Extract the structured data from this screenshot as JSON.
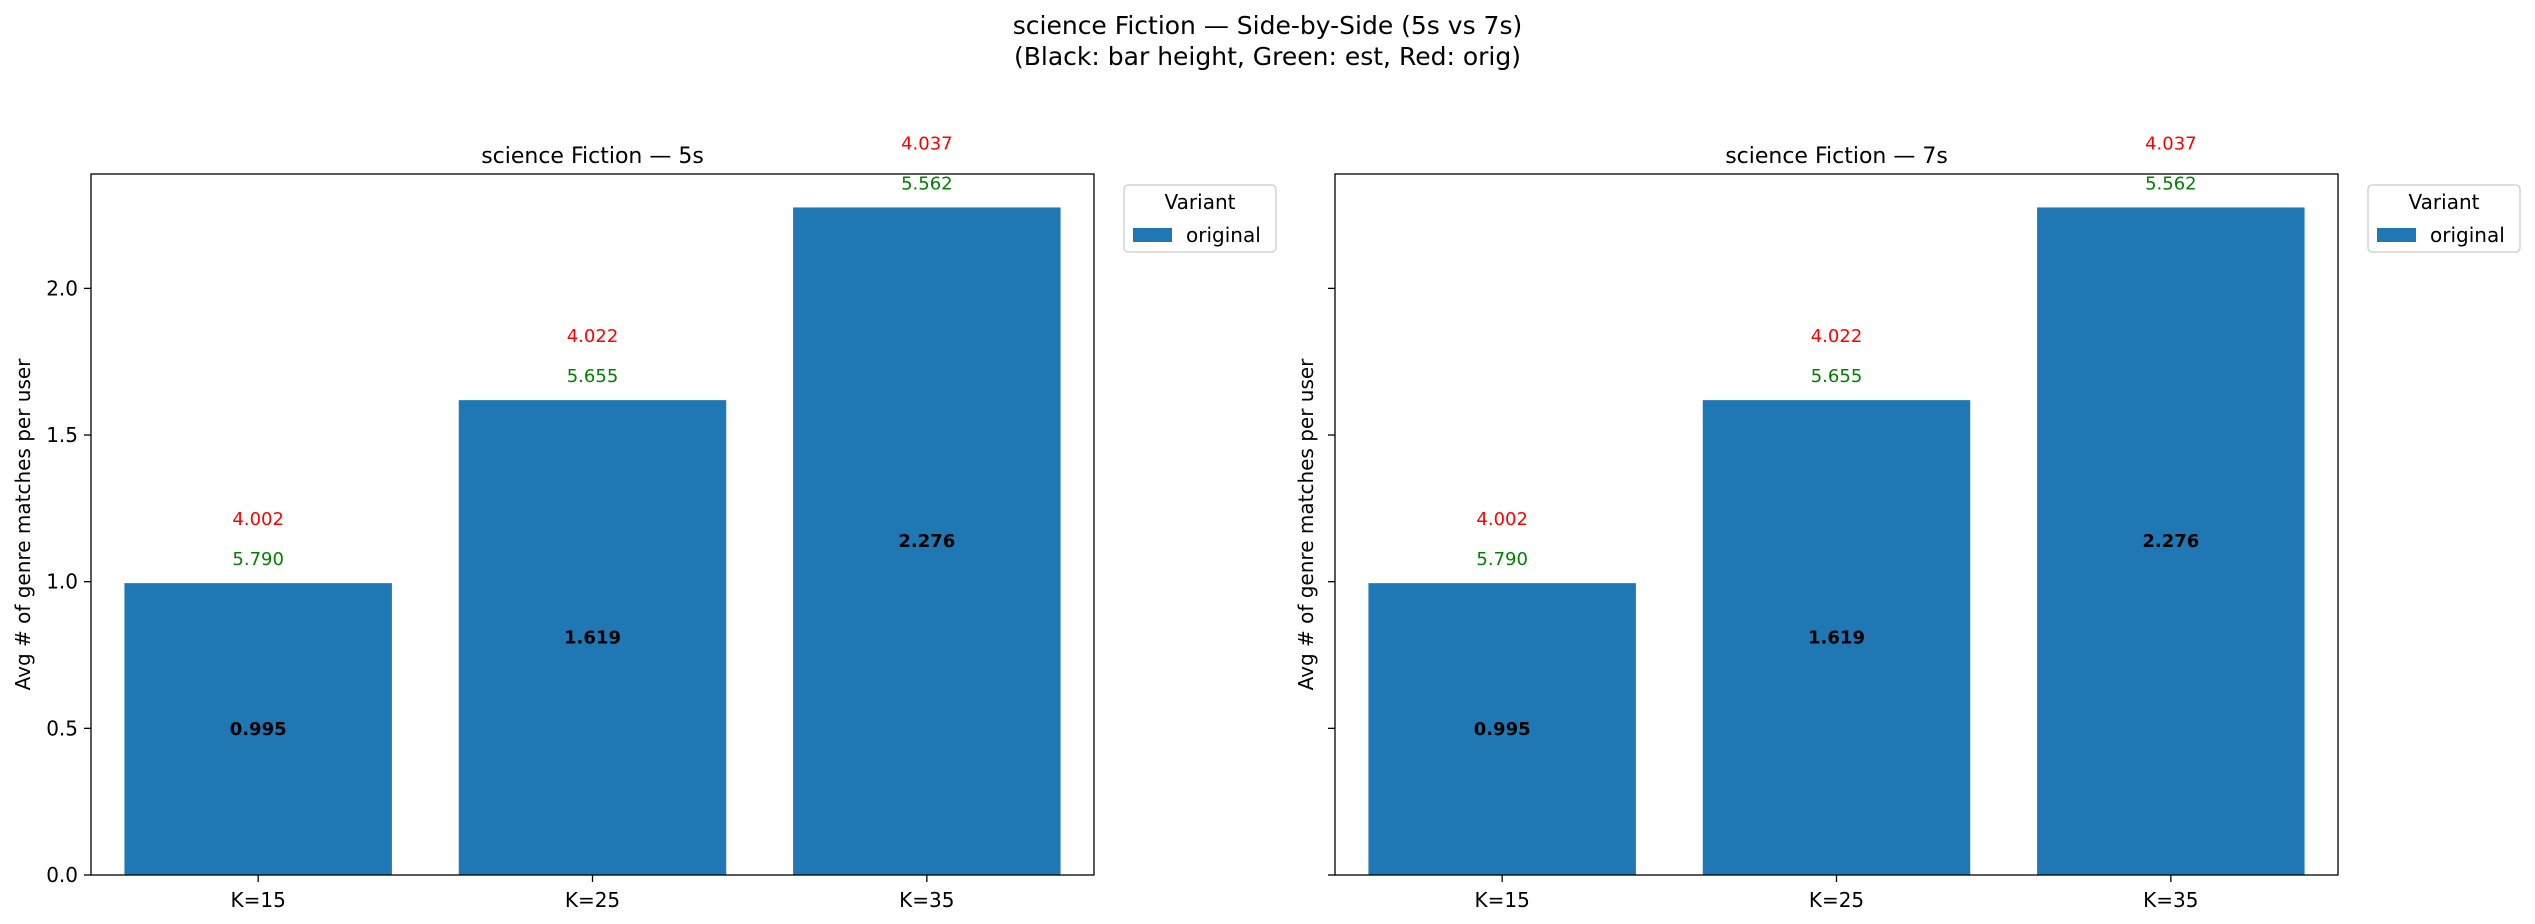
{
  "suptitle": {
    "line1": "science Fiction — Side-by-Side (5s vs 7s)",
    "line2": "(Black: bar height, Green: est, Red: orig)"
  },
  "colors": {
    "bar": "#1f77b4",
    "label_black": "#000000",
    "label_green": "#008000",
    "label_red": "#ff0000"
  },
  "chart_data": [
    {
      "type": "bar",
      "title": "science Fiction — 5s",
      "ylabel": "Avg # of genre matches per user",
      "xlabel": "",
      "categories": [
        "K=15",
        "K=25",
        "K=35"
      ],
      "series": [
        {
          "name": "original",
          "values": [
            0.995,
            1.619,
            2.276
          ]
        }
      ],
      "bar_labels": [
        "0.995",
        "1.619",
        "2.276"
      ],
      "est_labels": [
        "5.790",
        "5.655",
        "5.562"
      ],
      "orig_labels": [
        "4.002",
        "4.022",
        "4.037"
      ],
      "ylim": [
        0,
        2.39
      ],
      "yticks": [
        0.0,
        0.5,
        1.0,
        1.5,
        2.0
      ],
      "ytick_labels": [
        "0.0",
        "0.5",
        "1.0",
        "1.5",
        "2.0"
      ],
      "legend": {
        "title": "Variant",
        "entries": [
          "original"
        ],
        "placement": "outside-upper-right"
      },
      "grid": false
    },
    {
      "type": "bar",
      "title": "science Fiction — 7s",
      "ylabel": "Avg # of genre matches per user",
      "xlabel": "",
      "categories": [
        "K=15",
        "K=25",
        "K=35"
      ],
      "series": [
        {
          "name": "original",
          "values": [
            0.995,
            1.619,
            2.276
          ]
        }
      ],
      "bar_labels": [
        "0.995",
        "1.619",
        "2.276"
      ],
      "est_labels": [
        "5.790",
        "5.655",
        "5.562"
      ],
      "orig_labels": [
        "4.002",
        "4.022",
        "4.037"
      ],
      "ylim": [
        0,
        2.39
      ],
      "yticks": [
        0.0,
        0.5,
        1.0,
        1.5,
        2.0
      ],
      "ytick_labels": [],
      "legend": {
        "title": "Variant",
        "entries": [
          "original"
        ],
        "placement": "outside-upper-right"
      },
      "grid": false
    }
  ]
}
